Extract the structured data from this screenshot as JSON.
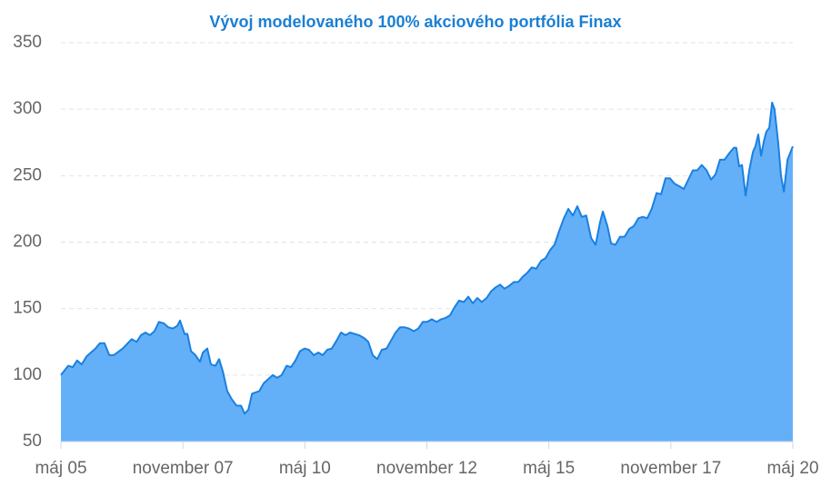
{
  "chart_data": {
    "type": "area",
    "title": "Vývoj modelovaného 100% akciového portfólia Finax",
    "color": "#64b0f8",
    "line_color": "#1a80e0",
    "grid": true,
    "xlim": [
      0,
      180
    ],
    "ylim": [
      50,
      350
    ],
    "xticks": [
      {
        "value": 0,
        "label": "máj 05"
      },
      {
        "value": 30,
        "label": "november 07"
      },
      {
        "value": 60,
        "label": "máj 10"
      },
      {
        "value": 90,
        "label": "november 12"
      },
      {
        "value": 120,
        "label": "máj 15"
      },
      {
        "value": 150,
        "label": "november 17"
      },
      {
        "value": 180,
        "label": "máj 20"
      }
    ],
    "yticks": [
      50,
      100,
      150,
      200,
      250,
      300,
      350
    ],
    "x": [
      0,
      1.8,
      2.9,
      4.0,
      5.1,
      6.3,
      8.5,
      9.6,
      10.7,
      11.9,
      13.0,
      15.2,
      17.4,
      18.6,
      19.7,
      20.8,
      21.9,
      23.0,
      24.1,
      25.3,
      26.4,
      27.5,
      28.6,
      29.3,
      30.4,
      31.1,
      32.0,
      33.1,
      34.2,
      34.9,
      36.0,
      36.9,
      38.0,
      38.9,
      39.8,
      40.9,
      42.0,
      43.2,
      44.3,
      45.2,
      46.1,
      47.0,
      48.8,
      49.9,
      51.0,
      52.1,
      53.2,
      54.3,
      55.5,
      56.6,
      57.7,
      58.8,
      59.9,
      61.0,
      62.2,
      63.3,
      64.4,
      65.5,
      66.6,
      67.8,
      68.9,
      70.0,
      71.1,
      72.2,
      73.3,
      74.5,
      75.6,
      76.7,
      77.8,
      78.9,
      80.1,
      81.2,
      82.3,
      83.4,
      84.5,
      85.6,
      86.8,
      87.9,
      89.0,
      90.1,
      91.2,
      92.4,
      93.5,
      94.6,
      95.7,
      96.8,
      97.9,
      99.1,
      100.2,
      101.3,
      102.4,
      103.5,
      104.7,
      105.8,
      106.9,
      108.0,
      109.1,
      110.2,
      111.4,
      112.5,
      113.6,
      114.7,
      115.8,
      116.9,
      118.1,
      119.2,
      120.3,
      121.4,
      122.5,
      123.7,
      124.8,
      125.9,
      127.0,
      128.1,
      129.2,
      130.4,
      131.5,
      132.6,
      133.3,
      134.4,
      135.3,
      136.4,
      137.5,
      138.6,
      139.8,
      140.9,
      142.0,
      143.1,
      144.2,
      145.3,
      146.5,
      147.6,
      148.7,
      149.8,
      150.9,
      152.1,
      153.2,
      154.3,
      155.4,
      156.5,
      157.6,
      158.8,
      159.9,
      161.0,
      162.1,
      163.2,
      164.4,
      165.5,
      166.1,
      166.8,
      167.5,
      168.4,
      169.3,
      170.2,
      170.8,
      171.5,
      172.2,
      172.9,
      173.5,
      174.2,
      174.9,
      175.5,
      176.4,
      177.1,
      177.8,
      178.7,
      180
    ],
    "values": [
      100,
      107,
      106,
      111,
      108,
      114,
      120,
      124,
      124,
      115,
      115,
      120,
      127,
      125,
      130,
      132,
      130,
      133,
      140,
      139,
      136,
      135,
      137,
      141,
      131,
      131,
      118,
      115,
      110,
      117,
      120,
      108,
      107,
      112,
      103,
      88,
      82,
      77,
      77,
      71,
      74,
      86,
      88,
      94,
      97,
      100,
      98,
      100,
      107,
      106,
      111,
      118,
      120,
      119,
      115,
      117,
      115,
      119,
      120,
      126,
      132,
      130,
      132,
      131,
      130,
      128,
      125,
      115,
      112,
      119,
      120,
      126,
      132,
      136,
      136,
      135,
      133,
      135,
      140,
      140,
      142,
      140,
      142,
      143,
      145,
      151,
      156,
      155,
      159,
      154,
      158,
      155,
      158,
      163,
      166,
      168,
      165,
      167,
      170,
      170,
      174,
      177,
      181,
      180,
      186,
      188,
      194,
      198,
      208,
      218,
      225,
      220,
      227,
      219,
      220,
      203,
      198,
      215,
      223,
      212,
      199,
      198,
      204,
      204,
      210,
      212,
      218,
      219,
      218,
      225,
      237,
      236,
      248,
      248,
      244,
      242,
      240,
      247,
      254,
      254,
      258,
      254,
      247,
      251,
      262,
      262,
      267,
      271,
      271,
      257,
      258,
      235,
      254,
      268,
      272,
      281,
      265,
      276,
      283,
      286,
      305,
      300,
      275,
      250,
      238,
      262,
      272
    ]
  }
}
